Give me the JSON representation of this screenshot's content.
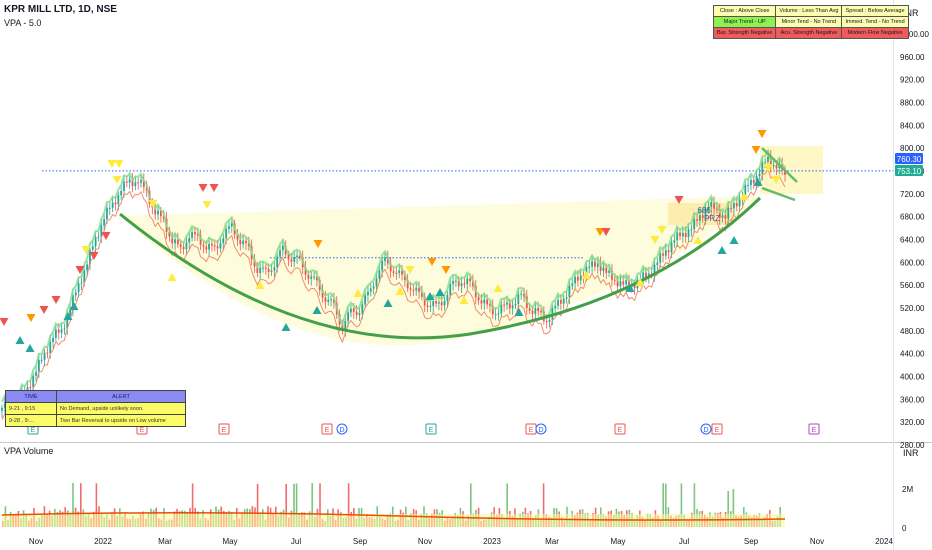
{
  "header": {
    "symbol": "KPR MILL LTD, 1D, NSE",
    "indicator": "VPA - 5.0",
    "volume_title": "VPA Volume",
    "currency": "INR"
  },
  "info_table": [
    [
      {
        "text": "Close : Above Close",
        "bg": "#fdfdb0"
      },
      {
        "text": "Volume : Less Than Avg",
        "bg": "#fdfdb0"
      },
      {
        "text": "Spread : Below Average",
        "bg": "#fdfdb0"
      }
    ],
    [
      {
        "text": "Major Trend - UP",
        "bg": "#8ef14e"
      },
      {
        "text": "Minor Tend - No Trend",
        "bg": "#fdfdb0"
      },
      {
        "text": "Immed. Tend - No Trend",
        "bg": "#fdfdb0"
      }
    ],
    [
      {
        "text": "Bar. Strength Negative",
        "bg": "#f05a5a"
      },
      {
        "text": "Acu. Strength Negative",
        "bg": "#f05a5a"
      },
      {
        "text": "Modern Flow Negative",
        "bg": "#f05a5a"
      }
    ]
  ],
  "alert_table": {
    "headers": [
      "TIME",
      "ALERT"
    ],
    "rows": [
      {
        "time": "9-21  ,  9:15",
        "alert": "No Demand, upside unlikely soon."
      },
      {
        "time": "9-28  ,  9:...",
        "alert": "Two Bar Reversal to upside on Low volume"
      }
    ]
  },
  "chart_data": {
    "type": "candlestick",
    "y_ticks": [
      280,
      320,
      360,
      400,
      440,
      480,
      520,
      560,
      600,
      640,
      680,
      720,
      760,
      800,
      840,
      880,
      920,
      960,
      1000
    ],
    "y_tick_labels": [
      "280.00",
      "320.00",
      "360.00",
      "400.00",
      "440.00",
      "480.00",
      "520.00",
      "560.00",
      "600.00",
      "640.00",
      "680.00",
      "720.00",
      "760.00",
      "800.00",
      "840.00",
      "880.00",
      "920.00",
      "960.00",
      "1000.00"
    ],
    "ylim": [
      265,
      1020
    ],
    "x_ticks": [
      "Nov",
      "2022",
      "Mar",
      "May",
      "Jul",
      "Sep",
      "Nov",
      "2023",
      "Mar",
      "May",
      "Jul",
      "Sep",
      "Nov",
      "2024"
    ],
    "volume_ticks": [
      "2M",
      "0"
    ],
    "price_labels": [
      {
        "value": 760.3,
        "text": "760.30",
        "color": "#2962ff"
      },
      {
        "value": 753.1,
        "text": "753.10",
        "color": "#22ab94"
      }
    ],
    "resistance_lines": [
      {
        "value": 760.3
      },
      {
        "value": 608
      }
    ],
    "annotations": [
      {
        "text": "686",
        "value": 686
      },
      {
        "text": "PRZ",
        "value": 672
      }
    ],
    "events": [
      "E",
      "E",
      "E",
      "E",
      "D",
      "E",
      "E",
      "D",
      "E",
      "D",
      "E",
      "E"
    ],
    "close_series": [
      345,
      350,
      360,
      380,
      410,
      440,
      470,
      480,
      520,
      560,
      600,
      640,
      680,
      700,
      730,
      740,
      745,
      720,
      690,
      670,
      640,
      620,
      650,
      640,
      630,
      620,
      650,
      660,
      640,
      620,
      590,
      580,
      600,
      620,
      610,
      600,
      580,
      560,
      540,
      520,
      490,
      510,
      520,
      540,
      580,
      600,
      590,
      570,
      560,
      540,
      530,
      520,
      540,
      560,
      570,
      560,
      540,
      520,
      515,
      520,
      530,
      540,
      520,
      510,
      500,
      520,
      540,
      560,
      580,
      590,
      600,
      580,
      570,
      560,
      560,
      570,
      580,
      600,
      620,
      640,
      650,
      660,
      680,
      700,
      690,
      680,
      700,
      720,
      740,
      760,
      780,
      770,
      753.1
    ]
  }
}
